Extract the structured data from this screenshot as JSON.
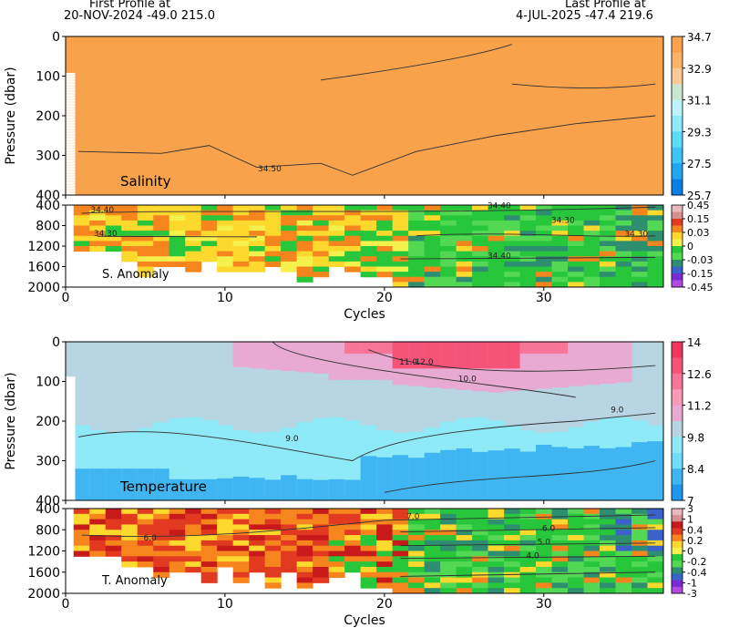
{
  "header": {
    "first_label": "First Profile at",
    "first_info": "20-NOV-2024    -49.0  215.0",
    "last_label": "Last Profile at",
    "last_info": "4-JUL-2025    -47.4  219.6"
  },
  "chart_data": [
    {
      "type": "heatmap",
      "panel": "salinity",
      "label": "Salinity",
      "ylabel": "Pressure (dbar)",
      "xlim": [
        0,
        37.5
      ],
      "ylim": [
        400,
        0
      ],
      "yticks": [
        "0",
        "100",
        "200",
        "300",
        "400"
      ],
      "colorbar": {
        "ticks": [
          "34.7",
          "32.9",
          "31.1",
          "29.3",
          "27.5",
          "25.7"
        ],
        "colors": [
          "#f9a24c",
          "#fbb36a",
          "#fdc996",
          "#c9e6cf",
          "#bff3fb",
          "#8eebfb",
          "#5ddcfa",
          "#3fc4f6",
          "#21a6ef",
          "#0b7ee6"
        ]
      },
      "contours": [
        {
          "label": "34.50",
          "x": 12.8,
          "y": 340
        }
      ]
    },
    {
      "type": "heatmap",
      "panel": "salinity-anomaly",
      "label": "S. Anomaly",
      "ylim": [
        2000,
        400
      ],
      "yticks": [
        "400",
        "800",
        "1200",
        "1600",
        "2000"
      ],
      "colorbar": {
        "ticks": [
          "0.45",
          "0.15",
          "0.03",
          "0",
          "-0.03",
          "-0.15",
          "-0.45"
        ],
        "colors": [
          "#e9b9c0",
          "#d88f8f",
          "#e23a20",
          "#f6851e",
          "#fdd82d",
          "#f4f14c",
          "#27c63b",
          "#53d854",
          "#2d8f70",
          "#3a62c8",
          "#7b2ad8",
          "#b44be0"
        ]
      },
      "contours": [
        {
          "label": "34.40",
          "x": 2.3,
          "y": 540
        },
        {
          "label": "34.30",
          "x": 2.5,
          "y": 1000
        },
        {
          "label": "34.40",
          "x": 27.2,
          "y": 460
        },
        {
          "label": "34.30",
          "x": 31.2,
          "y": 750
        },
        {
          "label": "34.30",
          "x": 35.8,
          "y": 1010
        },
        {
          "label": "34.40",
          "x": 27.2,
          "y": 1440
        }
      ]
    },
    {
      "type": "heatmap",
      "panel": "temperature",
      "label": "Temperature",
      "ylabel": "Pressure (dbar)",
      "xlim": [
        0,
        37.5
      ],
      "ylim": [
        400,
        0
      ],
      "yticks": [
        "0",
        "100",
        "200",
        "300",
        "400"
      ],
      "colorbar": {
        "ticks": [
          "14",
          "12.6",
          "11.2",
          "9.8",
          "8.4",
          "7"
        ],
        "colors": [
          "#f2365e",
          "#f55378",
          "#f77596",
          "#f89ab8",
          "#e8aad2",
          "#b7d5e2",
          "#8eeaf7",
          "#6fdef8",
          "#3fb6f1",
          "#2196ee"
        ]
      },
      "contours": [
        {
          "label": "11.0",
          "x": 21.5,
          "y": 58
        },
        {
          "label": "12.0",
          "x": 22.5,
          "y": 58
        },
        {
          "label": "10.0",
          "x": 25.2,
          "y": 100
        },
        {
          "label": "9.0",
          "x": 34.6,
          "y": 178
        },
        {
          "label": "9.0",
          "x": 14.2,
          "y": 250
        }
      ]
    },
    {
      "type": "heatmap",
      "panel": "temperature-anomaly",
      "label": "T. Anomaly",
      "xlabel": "Cycles",
      "xticks": [
        "0",
        "10",
        "20",
        "30"
      ],
      "ylim": [
        2000,
        400
      ],
      "yticks": [
        "400",
        "800",
        "1200",
        "1600",
        "2000"
      ],
      "colorbar": {
        "ticks": [
          "3",
          "1",
          "0.4",
          "0.2",
          "0",
          "-0.2",
          "-0.4",
          "-1",
          "-3"
        ],
        "colors": [
          "#e9b9c0",
          "#d88f8f",
          "#c81a1a",
          "#e23a20",
          "#f6851e",
          "#fdd82d",
          "#f4f14c",
          "#27c63b",
          "#53d854",
          "#2d8f70",
          "#3a62c8",
          "#7b2ad8",
          "#b44be0"
        ]
      },
      "contours": [
        {
          "label": "6.0",
          "x": 5.3,
          "y": 1000
        },
        {
          "label": "7.0",
          "x": 21.8,
          "y": 600
        },
        {
          "label": "6.0",
          "x": 30.3,
          "y": 820
        },
        {
          "label": "5.0",
          "x": 30.0,
          "y": 1080
        },
        {
          "label": "4.0",
          "x": 29.3,
          "y": 1340
        }
      ]
    }
  ],
  "axis": {
    "xlabel": "Cycles",
    "xticks": [
      "0",
      "10",
      "20",
      "30"
    ]
  }
}
